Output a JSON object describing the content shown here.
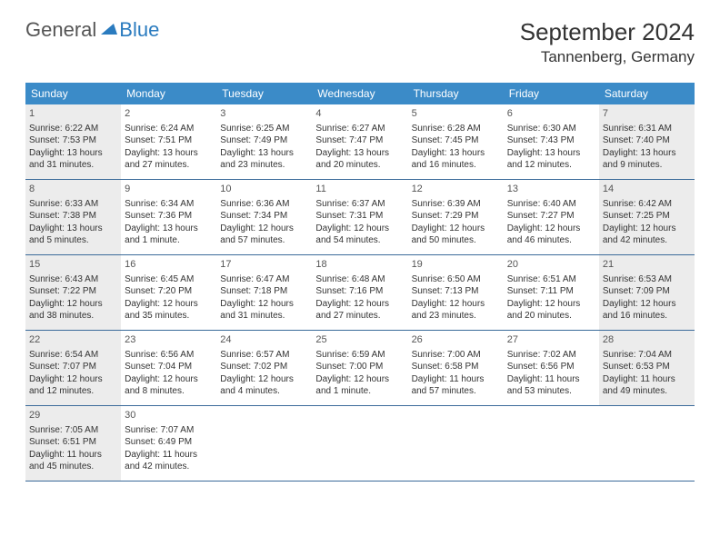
{
  "logo": {
    "general": "General",
    "blue": "Blue"
  },
  "title": "September 2024",
  "location": "Tannenberg, Germany",
  "colors": {
    "header_bg": "#3b8bc8",
    "header_text": "#ffffff",
    "grey_cell": "#ececec",
    "border": "#3b6b9a",
    "text": "#333333",
    "logo_blue": "#2a7bbf"
  },
  "weekdays": [
    "Sunday",
    "Monday",
    "Tuesday",
    "Wednesday",
    "Thursday",
    "Friday",
    "Saturday"
  ],
  "weeks": [
    [
      {
        "n": "1",
        "grey": true,
        "sunrise": "Sunrise: 6:22 AM",
        "sunset": "Sunset: 7:53 PM",
        "day1": "Daylight: 13 hours",
        "day2": "and 31 minutes."
      },
      {
        "n": "2",
        "grey": false,
        "sunrise": "Sunrise: 6:24 AM",
        "sunset": "Sunset: 7:51 PM",
        "day1": "Daylight: 13 hours",
        "day2": "and 27 minutes."
      },
      {
        "n": "3",
        "grey": false,
        "sunrise": "Sunrise: 6:25 AM",
        "sunset": "Sunset: 7:49 PM",
        "day1": "Daylight: 13 hours",
        "day2": "and 23 minutes."
      },
      {
        "n": "4",
        "grey": false,
        "sunrise": "Sunrise: 6:27 AM",
        "sunset": "Sunset: 7:47 PM",
        "day1": "Daylight: 13 hours",
        "day2": "and 20 minutes."
      },
      {
        "n": "5",
        "grey": false,
        "sunrise": "Sunrise: 6:28 AM",
        "sunset": "Sunset: 7:45 PM",
        "day1": "Daylight: 13 hours",
        "day2": "and 16 minutes."
      },
      {
        "n": "6",
        "grey": false,
        "sunrise": "Sunrise: 6:30 AM",
        "sunset": "Sunset: 7:43 PM",
        "day1": "Daylight: 13 hours",
        "day2": "and 12 minutes."
      },
      {
        "n": "7",
        "grey": true,
        "sunrise": "Sunrise: 6:31 AM",
        "sunset": "Sunset: 7:40 PM",
        "day1": "Daylight: 13 hours",
        "day2": "and 9 minutes."
      }
    ],
    [
      {
        "n": "8",
        "grey": true,
        "sunrise": "Sunrise: 6:33 AM",
        "sunset": "Sunset: 7:38 PM",
        "day1": "Daylight: 13 hours",
        "day2": "and 5 minutes."
      },
      {
        "n": "9",
        "grey": false,
        "sunrise": "Sunrise: 6:34 AM",
        "sunset": "Sunset: 7:36 PM",
        "day1": "Daylight: 13 hours",
        "day2": "and 1 minute."
      },
      {
        "n": "10",
        "grey": false,
        "sunrise": "Sunrise: 6:36 AM",
        "sunset": "Sunset: 7:34 PM",
        "day1": "Daylight: 12 hours",
        "day2": "and 57 minutes."
      },
      {
        "n": "11",
        "grey": false,
        "sunrise": "Sunrise: 6:37 AM",
        "sunset": "Sunset: 7:31 PM",
        "day1": "Daylight: 12 hours",
        "day2": "and 54 minutes."
      },
      {
        "n": "12",
        "grey": false,
        "sunrise": "Sunrise: 6:39 AM",
        "sunset": "Sunset: 7:29 PM",
        "day1": "Daylight: 12 hours",
        "day2": "and 50 minutes."
      },
      {
        "n": "13",
        "grey": false,
        "sunrise": "Sunrise: 6:40 AM",
        "sunset": "Sunset: 7:27 PM",
        "day1": "Daylight: 12 hours",
        "day2": "and 46 minutes."
      },
      {
        "n": "14",
        "grey": true,
        "sunrise": "Sunrise: 6:42 AM",
        "sunset": "Sunset: 7:25 PM",
        "day1": "Daylight: 12 hours",
        "day2": "and 42 minutes."
      }
    ],
    [
      {
        "n": "15",
        "grey": true,
        "sunrise": "Sunrise: 6:43 AM",
        "sunset": "Sunset: 7:22 PM",
        "day1": "Daylight: 12 hours",
        "day2": "and 38 minutes."
      },
      {
        "n": "16",
        "grey": false,
        "sunrise": "Sunrise: 6:45 AM",
        "sunset": "Sunset: 7:20 PM",
        "day1": "Daylight: 12 hours",
        "day2": "and 35 minutes."
      },
      {
        "n": "17",
        "grey": false,
        "sunrise": "Sunrise: 6:47 AM",
        "sunset": "Sunset: 7:18 PM",
        "day1": "Daylight: 12 hours",
        "day2": "and 31 minutes."
      },
      {
        "n": "18",
        "grey": false,
        "sunrise": "Sunrise: 6:48 AM",
        "sunset": "Sunset: 7:16 PM",
        "day1": "Daylight: 12 hours",
        "day2": "and 27 minutes."
      },
      {
        "n": "19",
        "grey": false,
        "sunrise": "Sunrise: 6:50 AM",
        "sunset": "Sunset: 7:13 PM",
        "day1": "Daylight: 12 hours",
        "day2": "and 23 minutes."
      },
      {
        "n": "20",
        "grey": false,
        "sunrise": "Sunrise: 6:51 AM",
        "sunset": "Sunset: 7:11 PM",
        "day1": "Daylight: 12 hours",
        "day2": "and 20 minutes."
      },
      {
        "n": "21",
        "grey": true,
        "sunrise": "Sunrise: 6:53 AM",
        "sunset": "Sunset: 7:09 PM",
        "day1": "Daylight: 12 hours",
        "day2": "and 16 minutes."
      }
    ],
    [
      {
        "n": "22",
        "grey": true,
        "sunrise": "Sunrise: 6:54 AM",
        "sunset": "Sunset: 7:07 PM",
        "day1": "Daylight: 12 hours",
        "day2": "and 12 minutes."
      },
      {
        "n": "23",
        "grey": false,
        "sunrise": "Sunrise: 6:56 AM",
        "sunset": "Sunset: 7:04 PM",
        "day1": "Daylight: 12 hours",
        "day2": "and 8 minutes."
      },
      {
        "n": "24",
        "grey": false,
        "sunrise": "Sunrise: 6:57 AM",
        "sunset": "Sunset: 7:02 PM",
        "day1": "Daylight: 12 hours",
        "day2": "and 4 minutes."
      },
      {
        "n": "25",
        "grey": false,
        "sunrise": "Sunrise: 6:59 AM",
        "sunset": "Sunset: 7:00 PM",
        "day1": "Daylight: 12 hours",
        "day2": "and 1 minute."
      },
      {
        "n": "26",
        "grey": false,
        "sunrise": "Sunrise: 7:00 AM",
        "sunset": "Sunset: 6:58 PM",
        "day1": "Daylight: 11 hours",
        "day2": "and 57 minutes."
      },
      {
        "n": "27",
        "grey": false,
        "sunrise": "Sunrise: 7:02 AM",
        "sunset": "Sunset: 6:56 PM",
        "day1": "Daylight: 11 hours",
        "day2": "and 53 minutes."
      },
      {
        "n": "28",
        "grey": true,
        "sunrise": "Sunrise: 7:04 AM",
        "sunset": "Sunset: 6:53 PM",
        "day1": "Daylight: 11 hours",
        "day2": "and 49 minutes."
      }
    ],
    [
      {
        "n": "29",
        "grey": true,
        "sunrise": "Sunrise: 7:05 AM",
        "sunset": "Sunset: 6:51 PM",
        "day1": "Daylight: 11 hours",
        "day2": "and 45 minutes."
      },
      {
        "n": "30",
        "grey": false,
        "sunrise": "Sunrise: 7:07 AM",
        "sunset": "Sunset: 6:49 PM",
        "day1": "Daylight: 11 hours",
        "day2": "and 42 minutes."
      },
      {
        "empty": true
      },
      {
        "empty": true
      },
      {
        "empty": true
      },
      {
        "empty": true
      },
      {
        "empty": true
      }
    ]
  ]
}
